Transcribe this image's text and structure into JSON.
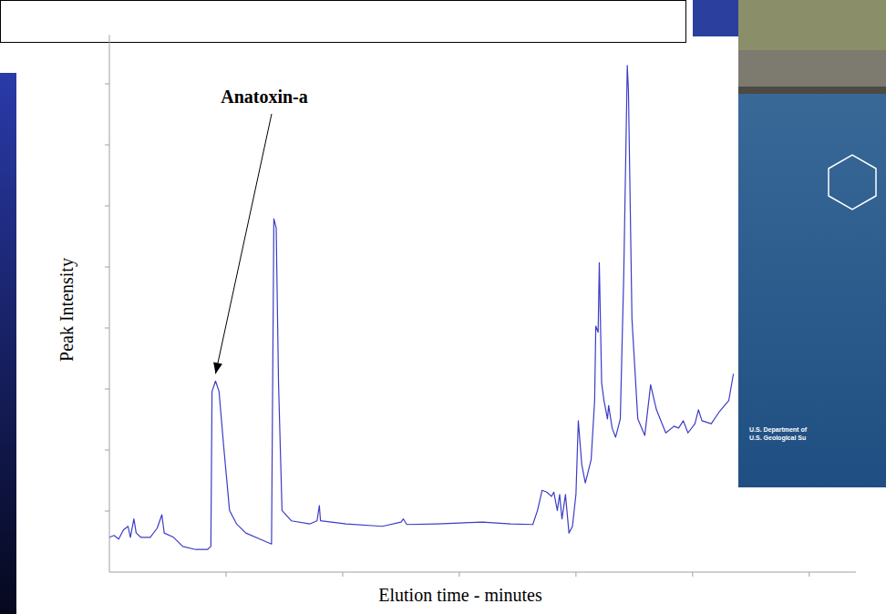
{
  "chart_data": {
    "type": "line",
    "xlabel": "Elution time - minutes",
    "ylabel": "Peak Intensity",
    "color": "#3c3cc8",
    "x": [
      0,
      0.04,
      0.08,
      0.12,
      0.16,
      0.18,
      0.21,
      0.23,
      0.27,
      0.35,
      0.41,
      0.45,
      0.47,
      0.55,
      0.63,
      0.74,
      0.84,
      0.87,
      0.88,
      0.91,
      0.94,
      0.98,
      1.03,
      1.09,
      1.17,
      1.29,
      1.39,
      1.41,
      1.43,
      1.45,
      1.48,
      1.56,
      1.72,
      1.78,
      1.8,
      1.81,
      2.03,
      2.34,
      2.5,
      2.52,
      2.55,
      2.81,
      3.2,
      3.44,
      3.63,
      3.67,
      3.71,
      3.75,
      3.79,
      3.81,
      3.84,
      3.86,
      3.88,
      3.91,
      3.94,
      3.97,
      4.0,
      4.02,
      4.05,
      4.08,
      4.13,
      4.16,
      4.17,
      4.19,
      4.2,
      4.22,
      4.24,
      4.27,
      4.28,
      4.31,
      4.34,
      4.38,
      4.41,
      4.44,
      4.45,
      4.48,
      4.53,
      4.59,
      4.64,
      4.69,
      4.77,
      4.84,
      4.88,
      4.92,
      4.96,
      5.02,
      5.05,
      5.08,
      5.16,
      5.23,
      5.31,
      5.35
    ],
    "values": [
      0.57,
      0.6,
      0.54,
      0.69,
      0.75,
      0.57,
      0.87,
      0.64,
      0.57,
      0.57,
      0.72,
      0.94,
      0.64,
      0.57,
      0.42,
      0.37,
      0.37,
      0.42,
      2.96,
      3.13,
      2.96,
      2.06,
      1.01,
      0.79,
      0.64,
      0.54,
      0.46,
      5.79,
      5.64,
      3.1,
      1.01,
      0.84,
      0.79,
      0.84,
      1.09,
      0.84,
      0.79,
      0.75,
      0.82,
      0.87,
      0.78,
      0.79,
      0.82,
      0.79,
      0.78,
      1.01,
      1.34,
      1.31,
      1.24,
      1.31,
      1.01,
      1.27,
      0.87,
      1.27,
      0.64,
      0.75,
      1.28,
      2.48,
      1.76,
      1.46,
      1.84,
      2.81,
      4.03,
      3.93,
      5.07,
      3.1,
      2.81,
      2.51,
      2.73,
      2.36,
      2.21,
      2.51,
      4.9,
      8.3,
      7.88,
      4.15,
      2.51,
      2.24,
      3.07,
      2.66,
      2.28,
      2.39,
      2.36,
      2.48,
      2.28,
      2.43,
      2.66,
      2.48,
      2.43,
      2.63,
      2.81,
      3.25
    ],
    "xlim": [
      0,
      6.4
    ],
    "ylim": [
      0,
      8.8
    ],
    "xticks": [
      1,
      2,
      3,
      4,
      5,
      6
    ],
    "yticks": [
      1,
      2,
      3,
      4,
      5,
      6,
      7,
      8
    ],
    "tick_labels": false,
    "grid": false,
    "annotations": [
      {
        "text": "Anatoxin-a",
        "x": 0.91,
        "y": 3.13
      }
    ]
  },
  "photo": {
    "lines": [
      "U.S. Department of",
      "U.S. Geological Su"
    ]
  }
}
